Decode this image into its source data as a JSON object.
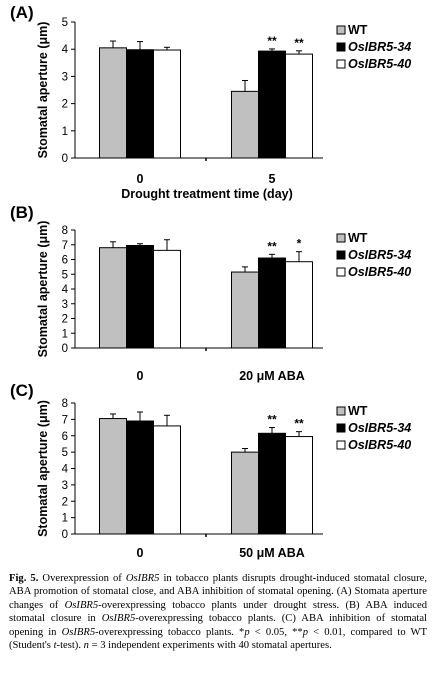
{
  "chart_data": [
    {
      "type": "bar",
      "panel_label": "(A)",
      "ylabel": "Stomatal aperture (μm)",
      "xlabel": "Drought treatment time (day)",
      "categories": [
        "0",
        "5"
      ],
      "ylim": [
        0,
        5
      ],
      "yticks": [
        "0",
        "1",
        "2",
        "3",
        "4",
        "5"
      ],
      "series": [
        {
          "name": "WT",
          "color": "#c0c0c0",
          "values": [
            4.05,
            2.45
          ],
          "errors": [
            0.25,
            0.4
          ]
        },
        {
          "name": "OsIBR5-34",
          "color": "#000000",
          "values": [
            3.98,
            3.93
          ],
          "errors": [
            0.3,
            0.08
          ]
        },
        {
          "name": "OsIBR5-40",
          "color": "#ffffff",
          "values": [
            3.97,
            3.82
          ],
          "errors": [
            0.1,
            0.12
          ]
        }
      ],
      "annotations": [
        {
          "category": 1,
          "series": 1,
          "text": "**"
        },
        {
          "category": 1,
          "series": 2,
          "text": "**"
        }
      ],
      "legend_position": "right"
    },
    {
      "type": "bar",
      "panel_label": "(B)",
      "ylabel": "Stomatal aperture (μm)",
      "xlabel": "",
      "categories": [
        "0",
        "20 μM ABA"
      ],
      "ylim": [
        0,
        8
      ],
      "yticks": [
        "0",
        "1",
        "2",
        "3",
        "4",
        "5",
        "6",
        "7",
        "8"
      ],
      "series": [
        {
          "name": "WT",
          "color": "#c0c0c0",
          "values": [
            6.8,
            5.15
          ],
          "errors": [
            0.4,
            0.35
          ]
        },
        {
          "name": "OsIBR5-34",
          "color": "#000000",
          "values": [
            6.95,
            6.1
          ],
          "errors": [
            0.12,
            0.25
          ]
        },
        {
          "name": "OsIBR5-40",
          "color": "#ffffff",
          "values": [
            6.62,
            5.85
          ],
          "errors": [
            0.72,
            0.68
          ]
        }
      ],
      "annotations": [
        {
          "category": 1,
          "series": 1,
          "text": "**"
        },
        {
          "category": 1,
          "series": 2,
          "text": "*"
        }
      ],
      "legend_position": "right"
    },
    {
      "type": "bar",
      "panel_label": "(C)",
      "ylabel": "Stomatal aperture (μm)",
      "xlabel": "",
      "categories": [
        "0",
        "50 μM ABA"
      ],
      "ylim": [
        0,
        8
      ],
      "yticks": [
        "0",
        "1",
        "2",
        "3",
        "4",
        "5",
        "6",
        "7",
        "8"
      ],
      "series": [
        {
          "name": "WT",
          "color": "#c0c0c0",
          "values": [
            7.05,
            5.0
          ],
          "errors": [
            0.28,
            0.22
          ]
        },
        {
          "name": "OsIBR5-34",
          "color": "#000000",
          "values": [
            6.9,
            6.15
          ],
          "errors": [
            0.55,
            0.35
          ]
        },
        {
          "name": "OsIBR5-40",
          "color": "#ffffff",
          "values": [
            6.6,
            5.95
          ],
          "errors": [
            0.65,
            0.3
          ]
        }
      ],
      "annotations": [
        {
          "category": 1,
          "series": 1,
          "text": "**"
        },
        {
          "category": 1,
          "series": 2,
          "text": "**"
        }
      ],
      "legend_position": "right"
    }
  ],
  "caption": {
    "label": "Fig. 5.",
    "p1": " Overexpression of ",
    "g1": "OsIBR5",
    "p2": " in tobacco plants disrupts drought-induced stomatal closure, ABA promotion of stomatal close, and ABA inhibition of stomatal opening. (A) Stomata aperture changes of ",
    "g2": "OsIBR5",
    "p3": "-overexpressing tobacco plants under drought stress. (B) ABA induced stomatal closure in ",
    "g3": "OsIBR5",
    "p4": "-overexpressing tobacco plants. (C) ABA inhibition of stomatal opening in ",
    "g4": "OsIBR5",
    "p5": "-overexpressing tobacco plants. *",
    "pv1": "p",
    "p6": " < 0.05, **",
    "pv2": "p",
    "p7": " < 0.01, compared to WT (Student's ",
    "tt": "t",
    "p8": "-test). ",
    "nn": "n",
    "p9": " = 3 independent experiments with 40 stomatal apertures."
  }
}
